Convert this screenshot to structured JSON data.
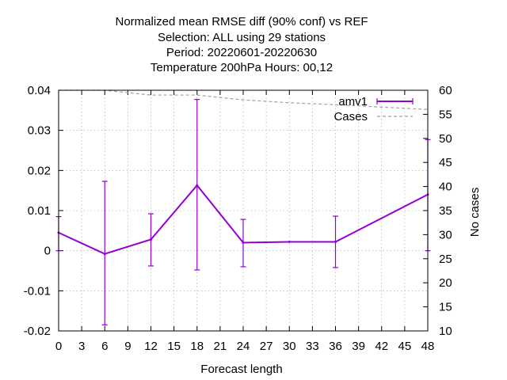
{
  "chart_data": {
    "type": "line",
    "title_lines": [
      "Normalized mean RMSE diff (90% conf) vs REF",
      "Selection: ALL using    29 stations",
      "Period: 20220601-20220630",
      "Temperature 200hPa   Hours:  00,12"
    ],
    "xlabel": "Forecast length",
    "ylabel": "",
    "y2label": "No cases",
    "xlim": [
      0,
      48
    ],
    "ylim": [
      -0.02,
      0.04
    ],
    "y2lim": [
      10,
      60
    ],
    "xticks": [
      0,
      3,
      6,
      9,
      12,
      15,
      18,
      21,
      24,
      27,
      30,
      33,
      36,
      39,
      42,
      45,
      48
    ],
    "yticks": [
      -0.02,
      -0.01,
      0,
      0.01,
      0.02,
      0.03,
      0.04
    ],
    "ytick_labels": [
      "-0.02",
      "-0.01",
      "0",
      "0.01",
      "0.02",
      "0.03",
      "0.04"
    ],
    "y2ticks": [
      10,
      15,
      20,
      25,
      30,
      35,
      40,
      45,
      50,
      55,
      60
    ],
    "grid": true,
    "legend_position": "top-right",
    "series": [
      {
        "name": "amv1",
        "color": "#9400d3",
        "axis": "y",
        "x": [
          0,
          6,
          12,
          18,
          24,
          30,
          36,
          48
        ],
        "values": [
          0.0045,
          -0.0008,
          0.0028,
          0.0163,
          0.002,
          0.0022,
          0.0022,
          0.014
        ],
        "errorbars": [
          {
            "x": 0,
            "low": 0.0,
            "high": 0.0085
          },
          {
            "x": 6,
            "low": -0.0185,
            "high": 0.0173
          },
          {
            "x": 12,
            "low": -0.0038,
            "high": 0.0092
          },
          {
            "x": 18,
            "low": -0.0048,
            "high": 0.0377
          },
          {
            "x": 24,
            "low": -0.004,
            "high": 0.0078
          },
          {
            "x": 36,
            "low": -0.0042,
            "high": 0.0086
          },
          {
            "x": 48,
            "low": 0.0,
            "high": 0.0277
          }
        ]
      },
      {
        "name": "Cases",
        "color": "#a0a0a0",
        "axis": "y2",
        "x": [
          0,
          6,
          12,
          18,
          24,
          30,
          36,
          48
        ],
        "values": [
          60,
          60,
          59,
          59,
          58,
          57.4,
          57,
          56
        ]
      }
    ]
  }
}
